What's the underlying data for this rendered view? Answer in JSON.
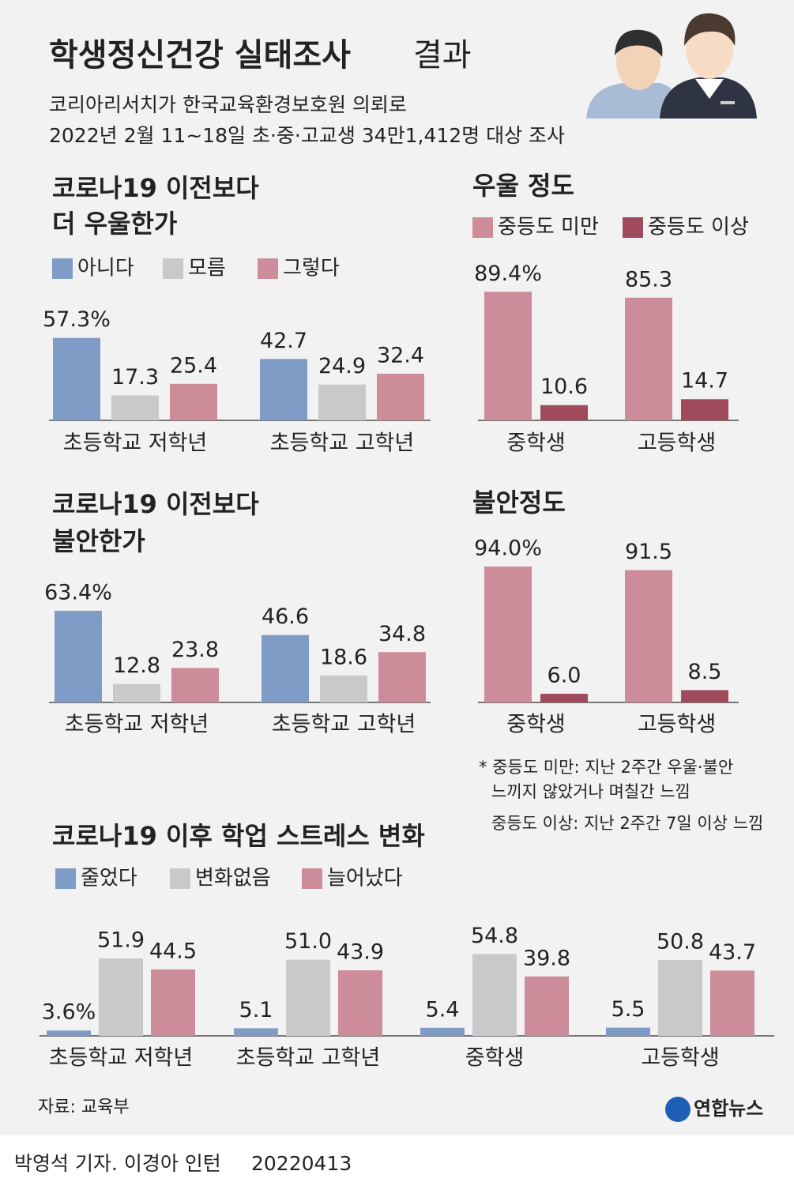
{
  "header": {
    "title": "학생정신건강 실태조사",
    "title_suffix": "결과",
    "subtitle": [
      "코리아리서치가 한국교육환경보호원 의뢰로",
      "2022년 2월 11~18일 초·중·고교생 34만1,412명 대상 조사"
    ]
  },
  "chart_data": [
    {
      "type": "bar",
      "title": [
        "코로나19 이전보다",
        "더 우울한가"
      ],
      "categories": [
        "초등학교 저학년",
        "초등학교 고학년"
      ],
      "series": [
        {
          "name": "아니다",
          "color": "#7f9cc6",
          "values": [
            57.3,
            42.7
          ],
          "value_labels": [
            "57.3%",
            "42.7"
          ]
        },
        {
          "name": "모름",
          "color": "#c9c9c9",
          "values": [
            17.3,
            24.9
          ],
          "value_labels": [
            "17.3",
            "24.9"
          ]
        },
        {
          "name": "그렇다",
          "color": "#cc8c9a",
          "values": [
            25.4,
            32.4
          ],
          "value_labels": [
            "25.4",
            "32.4"
          ]
        }
      ]
    },
    {
      "type": "bar",
      "title": [
        "우울 정도"
      ],
      "categories": [
        "중학생",
        "고등학생"
      ],
      "series": [
        {
          "name": "중등도 미만",
          "color": "#cc8c9a",
          "values": [
            89.4,
            85.3
          ],
          "value_labels": [
            "89.4%",
            "85.3"
          ]
        },
        {
          "name": "중등도 이상",
          "color": "#a04a5e",
          "values": [
            10.6,
            14.7
          ],
          "value_labels": [
            "10.6",
            "14.7"
          ]
        }
      ]
    },
    {
      "type": "bar",
      "title": [
        "코로나19 이전보다",
        "불안한가"
      ],
      "categories": [
        "초등학교 저학년",
        "초등학교 고학년"
      ],
      "series": [
        {
          "color": "#7f9cc6",
          "values": [
            63.4,
            46.6
          ],
          "value_labels": [
            "63.4%",
            "46.6"
          ]
        },
        {
          "color": "#c9c9c9",
          "values": [
            12.8,
            18.6
          ],
          "value_labels": [
            "12.8",
            "18.6"
          ]
        },
        {
          "color": "#cc8c9a",
          "values": [
            23.8,
            34.8
          ],
          "value_labels": [
            "23.8",
            "34.8"
          ]
        }
      ]
    },
    {
      "type": "bar",
      "title": [
        "불안정도"
      ],
      "categories": [
        "중학생",
        "고등학생"
      ],
      "series": [
        {
          "color": "#cc8c9a",
          "values": [
            94.0,
            91.5
          ],
          "value_labels": [
            "94.0%",
            "91.5"
          ]
        },
        {
          "color": "#a04a5e",
          "values": [
            6.0,
            8.5
          ],
          "value_labels": [
            "6.0",
            "8.5"
          ]
        }
      ],
      "notes": [
        "* 중등도 미만: 지난 2주간 우울·불안",
        "느끼지 않았거나 며칠간 느낌",
        "중등도 이상: 지난 2주간 7일 이상 느낌"
      ]
    },
    {
      "type": "bar",
      "title": [
        "코로나19 이후 학업 스트레스 변화"
      ],
      "categories": [
        "초등학교 저학년",
        "초등학교 고학년",
        "중학생",
        "고등학생"
      ],
      "series": [
        {
          "name": "줄었다",
          "color": "#7f9cc6",
          "values": [
            3.6,
            5.1,
            5.4,
            5.5
          ],
          "value_labels": [
            "3.6%",
            "5.1",
            "5.4",
            "5.5"
          ]
        },
        {
          "name": "변화없음",
          "color": "#c9c9c9",
          "values": [
            51.9,
            51.0,
            54.8,
            50.8
          ],
          "value_labels": [
            "51.9",
            "51.0",
            "54.8",
            "50.8"
          ]
        },
        {
          "name": "늘어났다",
          "color": "#cc8c9a",
          "values": [
            44.5,
            43.9,
            39.8,
            43.7
          ],
          "value_labels": [
            "44.5",
            "43.9",
            "39.8",
            "43.7"
          ]
        }
      ]
    }
  ],
  "source": "자료: 교육부",
  "logo": "연합뉴스",
  "credit": "박영석 기자. 이경아 인턴",
  "date": "20220413"
}
